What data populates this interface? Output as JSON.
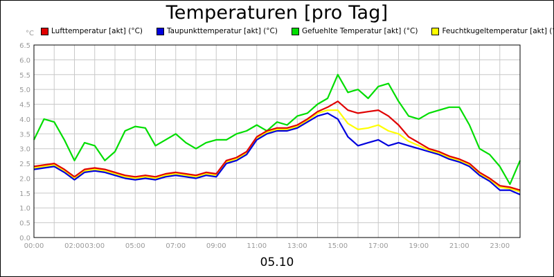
{
  "chart_data": {
    "type": "line",
    "title": "Temperaturen [pro Tag]",
    "xlabel": "05.10",
    "ylabel": "°C",
    "ylim": [
      0.0,
      6.5
    ],
    "xlim": [
      0,
      24
    ],
    "grid": true,
    "legend_position": "top",
    "x_ticks": [
      {
        "label": "00:00",
        "value": 0
      },
      {
        "label": "02:00",
        "value": 2
      },
      {
        "label": "03:00",
        "value": 3
      },
      {
        "label": "05:00",
        "value": 5
      },
      {
        "label": "07:00",
        "value": 7
      },
      {
        "label": "09:00",
        "value": 9
      },
      {
        "label": "11:00",
        "value": 11
      },
      {
        "label": "13:00",
        "value": 13
      },
      {
        "label": "15:00",
        "value": 15
      },
      {
        "label": "17:00",
        "value": 17
      },
      {
        "label": "19:00",
        "value": 19
      },
      {
        "label": "21:00",
        "value": 21
      },
      {
        "label": "23:00",
        "value": 23
      }
    ],
    "y_ticks": [
      "0.0",
      "0.5",
      "1.0",
      "1.5",
      "2.0",
      "2.5",
      "3.0",
      "3.5",
      "4.0",
      "4.5",
      "5.0",
      "5.5",
      "6.0",
      "6.5"
    ],
    "x": [
      0,
      0.5,
      1,
      1.5,
      2,
      2.5,
      3,
      3.5,
      4,
      4.5,
      5,
      5.5,
      6,
      6.5,
      7,
      7.5,
      8,
      8.5,
      9,
      9.5,
      10,
      10.5,
      11,
      11.5,
      12,
      12.5,
      13,
      13.5,
      14,
      14.5,
      15,
      15.5,
      16,
      16.5,
      17,
      17.5,
      18,
      18.5,
      19,
      19.5,
      20,
      20.5,
      21,
      21.5,
      22,
      22.5,
      23,
      23.5,
      24
    ],
    "series": [
      {
        "name": "Lufttemperatur [akt] (°C)",
        "color": "#e00000",
        "values": [
          2.4,
          2.45,
          2.5,
          2.3,
          2.05,
          2.3,
          2.35,
          2.3,
          2.2,
          2.1,
          2.05,
          2.1,
          2.05,
          2.15,
          2.2,
          2.15,
          2.1,
          2.2,
          2.15,
          2.6,
          2.7,
          2.9,
          3.4,
          3.6,
          3.7,
          3.7,
          3.8,
          4.0,
          4.25,
          4.4,
          4.6,
          4.3,
          4.2,
          4.25,
          4.3,
          4.1,
          3.8,
          3.4,
          3.2,
          3.0,
          2.9,
          2.75,
          2.65,
          2.5,
          2.2,
          2.0,
          1.75,
          1.7,
          1.6
        ]
      },
      {
        "name": "Taupunkttemperatur [akt] (°C)",
        "color": "#0000dd",
        "values": [
          2.3,
          2.35,
          2.4,
          2.2,
          1.95,
          2.2,
          2.25,
          2.2,
          2.1,
          2.0,
          1.95,
          2.0,
          1.95,
          2.05,
          2.1,
          2.05,
          2.0,
          2.1,
          2.05,
          2.5,
          2.6,
          2.8,
          3.3,
          3.5,
          3.6,
          3.6,
          3.7,
          3.9,
          4.1,
          4.2,
          4.0,
          3.4,
          3.1,
          3.2,
          3.3,
          3.1,
          3.2,
          3.1,
          3.0,
          2.9,
          2.8,
          2.65,
          2.55,
          2.4,
          2.1,
          1.9,
          1.6,
          1.6,
          1.45
        ]
      },
      {
        "name": "Gefuehlte Temperatur [akt] (°C)",
        "color": "#00dd00",
        "values": [
          3.3,
          4.0,
          3.9,
          3.3,
          2.6,
          3.2,
          3.1,
          2.6,
          2.9,
          3.6,
          3.75,
          3.7,
          3.1,
          3.3,
          3.5,
          3.2,
          3.0,
          3.2,
          3.3,
          3.3,
          3.5,
          3.6,
          3.8,
          3.6,
          3.9,
          3.8,
          4.1,
          4.2,
          4.5,
          4.7,
          5.5,
          4.9,
          5.0,
          4.7,
          5.1,
          5.2,
          4.6,
          4.1,
          4.0,
          4.2,
          4.3,
          4.4,
          4.4,
          3.8,
          3.0,
          2.8,
          2.4,
          1.8,
          2.6
        ]
      },
      {
        "name": "Feuchtkugeltemperatur [akt] (°C)",
        "color": "#ffff00",
        "values": [
          2.35,
          2.4,
          2.45,
          2.25,
          2.0,
          2.25,
          2.3,
          2.25,
          2.15,
          2.05,
          2.0,
          2.05,
          2.0,
          2.1,
          2.15,
          2.1,
          2.05,
          2.15,
          2.1,
          2.55,
          2.65,
          2.85,
          3.35,
          3.55,
          3.65,
          3.65,
          3.75,
          3.95,
          4.2,
          4.3,
          4.3,
          3.85,
          3.65,
          3.7,
          3.8,
          3.6,
          3.5,
          3.25,
          3.1,
          2.95,
          2.85,
          2.7,
          2.6,
          2.45,
          2.15,
          1.95,
          1.7,
          1.65,
          1.55
        ]
      }
    ]
  }
}
